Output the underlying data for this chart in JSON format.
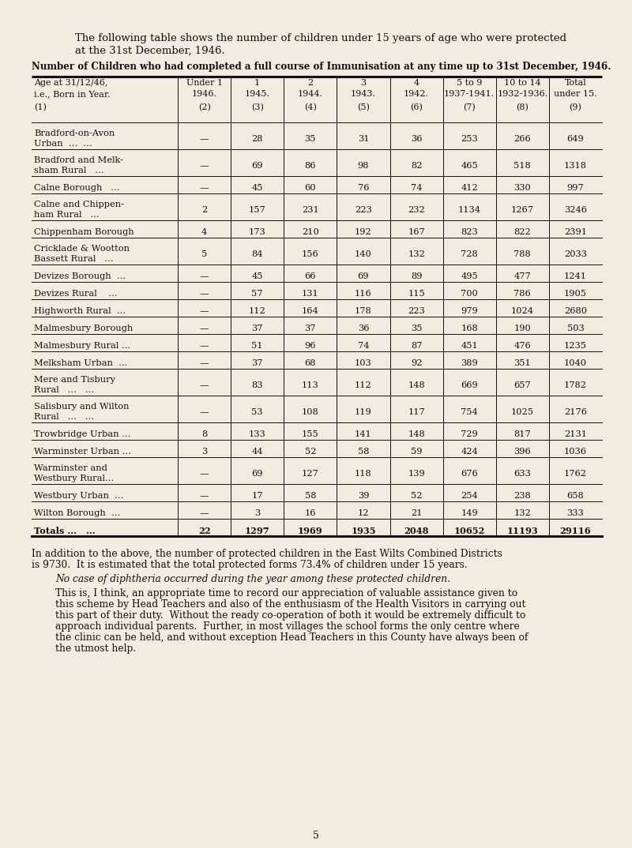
{
  "bg_color": "#f0ece0",
  "intro_line1": "The following table shows the number of children under 15 years of age who were protected",
  "intro_line2": "at the 31st December, 1946.",
  "table_title": "Number of Children who had completed a full course of Immunisation at any time up to 31st December, 1946.",
  "rows": [
    {
      "name_lines": [
        "Bradford-on-Avon",
        "Urban  ...  ..."
      ],
      "values": [
        "—",
        "28",
        "35",
        "31",
        "36",
        "253",
        "266",
        "649"
      ]
    },
    {
      "name_lines": [
        "Bradford and Melk-",
        "sham Rural   ..."
      ],
      "values": [
        "—",
        "69",
        "86",
        "98",
        "82",
        "465",
        "518",
        "1318"
      ]
    },
    {
      "name_lines": [
        "Calne Borough   ..."
      ],
      "values": [
        "—",
        "45",
        "60",
        "76",
        "74",
        "412",
        "330",
        "997"
      ]
    },
    {
      "name_lines": [
        "Calne and Chippen-",
        "ham Rural   ..."
      ],
      "values": [
        "2",
        "157",
        "231",
        "223",
        "232",
        "1134",
        "1267",
        "3246"
      ]
    },
    {
      "name_lines": [
        "Chippenham Borough"
      ],
      "values": [
        "4",
        "173",
        "210",
        "192",
        "167",
        "823",
        "822",
        "2391"
      ]
    },
    {
      "name_lines": [
        "Cricklade & Wootton",
        "Bassett Rural   ..."
      ],
      "values": [
        "5",
        "84",
        "•156",
        "140",
        "132",
        "728",
        "788",
        "2033"
      ]
    },
    {
      "name_lines": [
        "Devizes Borough  ..."
      ],
      "values": [
        "—",
        "45",
        "66",
        "69",
        "89",
        "495",
        "477",
        "1241"
      ]
    },
    {
      "name_lines": [
        "Devizes Rural    ..."
      ],
      "values": [
        "—",
        "57",
        "131",
        "116",
        "115",
        "700",
        "786",
        "1905"
      ]
    },
    {
      "name_lines": [
        "Highworth Rural  ..."
      ],
      "values": [
        "—",
        "112",
        "164",
        "178",
        "223",
        "979",
        "1024",
        "2680"
      ]
    },
    {
      "name_lines": [
        "Malmesbury Borough"
      ],
      "values": [
        "—",
        "37",
        "37",
        "36",
        "35",
        "168",
        "190",
        "503"
      ]
    },
    {
      "name_lines": [
        "Malmesbury Rural ..."
      ],
      "values": [
        "—",
        "51",
        "96",
        "74",
        "87",
        "451",
        "476",
        "1235"
      ]
    },
    {
      "name_lines": [
        "Melksham Urban  ..."
      ],
      "values": [
        "—",
        "37",
        "68",
        "103",
        "92",
        "389",
        "351",
        "1040"
      ]
    },
    {
      "name_lines": [
        "Mere and Tisbury",
        "Rural   ...   ..."
      ],
      "values": [
        "—",
        "83",
        "113",
        "112",
        "148",
        "669",
        "657",
        "1782"
      ]
    },
    {
      "name_lines": [
        "Salisbury and Wilton",
        "Rural   ...   ..."
      ],
      "values": [
        "—",
        "53",
        "108",
        "119",
        "117",
        "754",
        "1025",
        "2176"
      ]
    },
    {
      "name_lines": [
        "Trowbridge Urban ..."
      ],
      "values": [
        "8",
        "133",
        "155",
        "141",
        "148",
        "729",
        "817",
        "2131"
      ]
    },
    {
      "name_lines": [
        "Warminster Urban ..."
      ],
      "values": [
        "3",
        "44",
        "52",
        "58",
        "59",
        "424",
        "396",
        "1036"
      ]
    },
    {
      "name_lines": [
        "Warminster and",
        "Westbury Rural..."
      ],
      "values": [
        "—",
        "69",
        "127",
        "118",
        "139",
        "676",
        "633",
        "1762"
      ]
    },
    {
      "name_lines": [
        "Westbury Urban  ..."
      ],
      "values": [
        "—",
        "17",
        "58",
        "39",
        "52",
        "254",
        "238",
        "658"
      ]
    },
    {
      "name_lines": [
        "Wilton Borough  ..."
      ],
      "values": [
        "—",
        "3",
        "16",
        "12",
        "21",
        "149",
        "132",
        "333"
      ]
    },
    {
      "name_lines": [
        "Totals ...   ..."
      ],
      "values": [
        "22",
        "1297",
        "1969",
        "1935",
        "2048",
        "10652",
        "11193",
        "29116"
      ],
      "bold": true,
      "totals": true
    }
  ],
  "footer1_line1": "In addition to the above, the number of protected children in the East Wilts Combined Districts",
  "footer1_line2": "is 9730.  It is estimated that the total protected forms 73.4% of children under 15 years.",
  "footer2": "No case of diphtheria occurred during the year among these protected children.",
  "footer3_lines": [
    "This is, I think, an appropriate time to record our appreciation of valuable assistance given to",
    "this scheme by Head Teachers and also of the enthusiasm of the Health Visitors in carrying out",
    "this part of their duty.  Without the ready co-operation of both it would be extremely difficult to",
    "approach individual parents.  Further, in most villages the school forms the only centre where",
    "the clinic can be held, and without exception Head Teachers in this County have always been of",
    "the utmost help."
  ],
  "page_number": "5"
}
